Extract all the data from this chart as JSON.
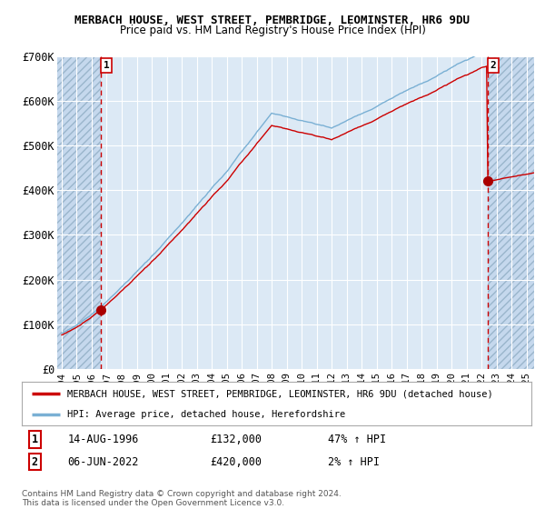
{
  "title": "MERBACH HOUSE, WEST STREET, PEMBRIDGE, LEOMINSTER, HR6 9DU",
  "subtitle": "Price paid vs. HM Land Registry's House Price Index (HPI)",
  "legend_line1": "MERBACH HOUSE, WEST STREET, PEMBRIDGE, LEOMINSTER, HR6 9DU (detached house)",
  "legend_line2": "HPI: Average price, detached house, Herefordshire",
  "transaction1_label": "1",
  "transaction1_date": "14-AUG-1996",
  "transaction1_price": "£132,000",
  "transaction1_hpi": "47% ↑ HPI",
  "transaction2_label": "2",
  "transaction2_date": "06-JUN-2022",
  "transaction2_price": "£420,000",
  "transaction2_hpi": "2% ↑ HPI",
  "copyright_text": "Contains HM Land Registry data © Crown copyright and database right 2024.\nThis data is licensed under the Open Government Licence v3.0.",
  "ylim": [
    0,
    700000
  ],
  "yticks": [
    0,
    100000,
    200000,
    300000,
    400000,
    500000,
    600000,
    700000
  ],
  "ytick_labels": [
    "£0",
    "£100K",
    "£200K",
    "£300K",
    "£400K",
    "£500K",
    "£600K",
    "£700K"
  ],
  "plot_bg_color": "#dce9f5",
  "hatch_region_color": "#c5d8ed",
  "grid_color": "#ffffff",
  "red_line_color": "#cc0000",
  "blue_line_color": "#7ab0d4",
  "vline2_color": "#8899bb",
  "transaction1_x": 1996.625,
  "transaction1_y": 132000,
  "transaction2_x": 2022.42,
  "transaction2_y": 420000,
  "vline1_x": 1996.625,
  "vline2_x": 2022.42,
  "xlim_start": 1993.7,
  "xlim_end": 2025.5,
  "hatch_right_start": 2022.42,
  "xticks": [
    1994,
    1995,
    1996,
    1997,
    1998,
    1999,
    2000,
    2001,
    2002,
    2003,
    2004,
    2005,
    2006,
    2007,
    2008,
    2009,
    2010,
    2011,
    2012,
    2013,
    2014,
    2015,
    2016,
    2017,
    2018,
    2019,
    2020,
    2021,
    2022,
    2023,
    2024,
    2025
  ]
}
